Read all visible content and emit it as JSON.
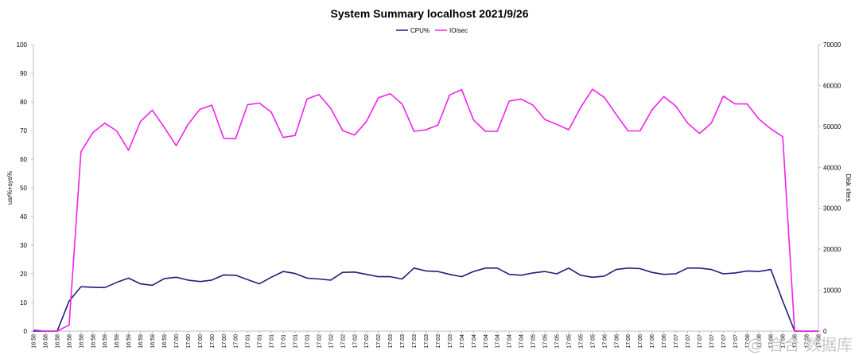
{
  "chart_data": {
    "type": "line",
    "title": "System Summary localhost  2021/9/26",
    "ylabel_left": "usr%+sys%",
    "ylabel_right": "Disk xfers",
    "ylim_left": [
      0,
      100
    ],
    "ylim_right": [
      0,
      70000
    ],
    "yticks_left": [
      "0",
      "10",
      "20",
      "30",
      "40",
      "50",
      "60",
      "70",
      "80",
      "90",
      "100"
    ],
    "yticks_right": [
      "0",
      "10000",
      "20000",
      "30000",
      "40000",
      "50000",
      "60000",
      "70000"
    ],
    "categories": [
      "16:58",
      "16:58",
      "16:58",
      "16:58",
      "16:58",
      "16:58",
      "16:59",
      "16:59",
      "16:59",
      "16:59",
      "16:59",
      "16:59",
      "17:00",
      "17:00",
      "17:00",
      "17:00",
      "17:00",
      "17:00",
      "17:01",
      "17:01",
      "17:01",
      "17:01",
      "17:01",
      "17:01",
      "17:02",
      "17:02",
      "17:02",
      "17:02",
      "17:02",
      "17:02",
      "17:03",
      "17:03",
      "17:03",
      "17:03",
      "17:03",
      "17:03",
      "17:04",
      "17:04",
      "17:04",
      "17:04",
      "17:04",
      "17:04",
      "17:05",
      "17:05",
      "17:05",
      "17:05",
      "17:05",
      "17:05",
      "17:06",
      "17:06",
      "17:06",
      "17:06",
      "17:06",
      "17:06",
      "17:07",
      "17:07",
      "17:07",
      "17:07",
      "17:07",
      "17:07",
      "17:08",
      "17:08",
      "17:08",
      "17:08",
      "17:08",
      "17:08",
      "17:08"
    ],
    "series": [
      {
        "name": "CPU%",
        "axis": "left",
        "color": "#1f1f7a",
        "values": [
          0,
          0,
          0,
          10.5,
          15.5,
          15.3,
          15.2,
          17,
          18.5,
          16.5,
          16,
          18.3,
          18.8,
          17.8,
          17.3,
          17.8,
          19.6,
          19.5,
          18,
          16.5,
          18.8,
          20.8,
          20.1,
          18.5,
          18.2,
          17.8,
          20.5,
          20.6,
          19.8,
          19,
          19,
          18.2,
          22,
          21,
          20.8,
          19.8,
          19,
          20.8,
          22,
          22,
          19.8,
          19.5,
          20.3,
          20.8,
          20,
          22,
          19.5,
          18.8,
          19.2,
          21.5,
          22,
          21.8,
          20.5,
          19.8,
          20,
          22,
          22,
          21.5,
          20,
          20.3,
          21,
          20.8,
          21.5,
          10.5,
          0,
          0,
          0
        ]
      },
      {
        "name": "IO/sec",
        "axis": "right",
        "color": "#ee22ee",
        "values": [
          300,
          0,
          0,
          1500,
          43800,
          48500,
          50800,
          48900,
          44200,
          51200,
          54000,
          49800,
          45300,
          50500,
          54200,
          55200,
          47100,
          47000,
          55300,
          55700,
          53500,
          47300,
          47800,
          56700,
          57800,
          54400,
          49000,
          47900,
          51200,
          57000,
          58000,
          55500,
          48800,
          49200,
          50300,
          57700,
          59000,
          51600,
          48800,
          48800,
          56200,
          56700,
          55200,
          51700,
          50500,
          49200,
          54600,
          59100,
          57100,
          52900,
          48900,
          48900,
          54000,
          57300,
          55000,
          50800,
          48300,
          50800,
          57400,
          55500,
          55500,
          51800,
          49400,
          47500,
          0,
          0,
          0
        ]
      }
    ],
    "legend_position": "top-center",
    "grid": false
  },
  "watermark": {
    "text": "@ 合合 数据库"
  },
  "colors": {
    "cpu": "#1f1f7a",
    "io": "#ee22ee",
    "axis": "#bfbfbf"
  }
}
